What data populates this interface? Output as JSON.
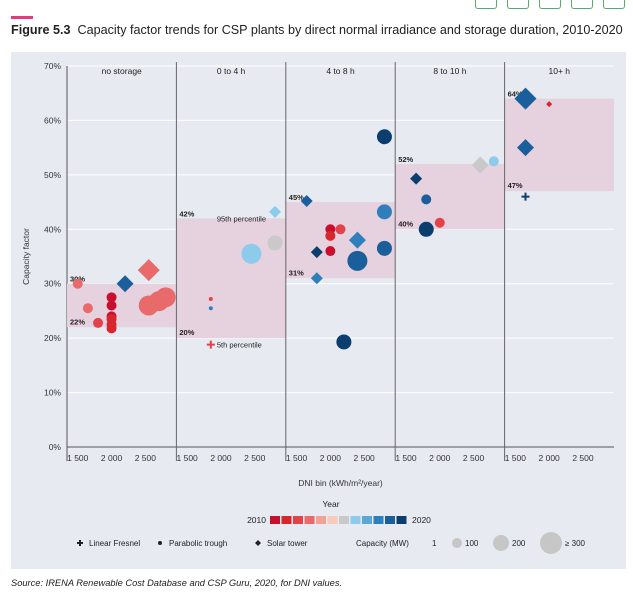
{
  "figure": {
    "label": "Figure 5.3",
    "title": "Capacity factor trends for CSP plants by direct normal irradiance and storage duration, 2010-2020",
    "source": "Source: IRENA Renewable Cost Database and CSP Guru, 2020, for DNI values."
  },
  "chart_data": {
    "type": "scatter",
    "title": "Capacity factor trends for CSP plants by direct normal irradiance and storage duration, 2010-2020",
    "xlabel": "DNI bin (kWh/m²/year)",
    "ylabel": "Capacity factor",
    "ylim": [
      0,
      0.7
    ],
    "y_ticks": [
      0,
      0.1,
      0.2,
      0.3,
      0.4,
      0.5,
      0.6,
      0.7
    ],
    "y_tick_labels": [
      "0%",
      "10%",
      "20%",
      "30%",
      "40%",
      "50%",
      "60%",
      "70%"
    ],
    "x_ticks": [
      1500,
      2000,
      2500
    ],
    "x_tick_labels": [
      "1 500",
      "2 000",
      "2 500"
    ],
    "xlim": [
      1400,
      2900
    ],
    "grid": true,
    "colors": {
      "band": "#e6d2de",
      "divider": "#666666",
      "year_2010": "#c8102e",
      "year_2020": "#0b3d6e"
    },
    "panels": [
      {
        "name": "no storage",
        "band": [
          0.22,
          0.3
        ],
        "band_labels": [
          "30%",
          "22%"
        ],
        "points": [
          {
            "x": 1500,
            "y": 0.3,
            "marker": "circle",
            "size": 1,
            "year": 2013
          },
          {
            "x": 1650,
            "y": 0.255,
            "marker": "circle",
            "size": 1,
            "year": 2013
          },
          {
            "x": 1800,
            "y": 0.228,
            "marker": "circle",
            "size": 1,
            "year": 2012
          },
          {
            "x": 2000,
            "y": 0.275,
            "marker": "circle",
            "size": 1,
            "year": 2010
          },
          {
            "x": 2000,
            "y": 0.26,
            "marker": "circle",
            "size": 1,
            "year": 2010
          },
          {
            "x": 2000,
            "y": 0.24,
            "marker": "circle",
            "size": 1,
            "year": 2010
          },
          {
            "x": 2000,
            "y": 0.235,
            "marker": "circle",
            "size": 1,
            "year": 2011
          },
          {
            "x": 2000,
            "y": 0.225,
            "marker": "circle",
            "size": 1,
            "year": 2011
          },
          {
            "x": 2000,
            "y": 0.218,
            "marker": "circle",
            "size": 1,
            "year": 2011
          },
          {
            "x": 2200,
            "y": 0.3,
            "marker": "diamond",
            "size": 2,
            "year": 2019
          },
          {
            "x": 2550,
            "y": 0.325,
            "marker": "diamond",
            "size": 3,
            "year": 2013
          },
          {
            "x": 2550,
            "y": 0.26,
            "marker": "circle",
            "size": 3,
            "year": 2013
          },
          {
            "x": 2700,
            "y": 0.268,
            "marker": "circle",
            "size": 3,
            "year": 2013
          },
          {
            "x": 2800,
            "y": 0.275,
            "marker": "circle",
            "size": 3,
            "year": 2013
          }
        ]
      },
      {
        "name": "0 to 4 h",
        "band": [
          0.2,
          0.42
        ],
        "band_labels": [
          "42%",
          "20%"
        ],
        "annotations": [
          {
            "text": "95th percentile",
            "x": 1850,
            "y": 0.42
          },
          {
            "text": "5th percentile",
            "x": 1850,
            "y": 0.188
          }
        ],
        "points": [
          {
            "x": 1850,
            "y": 0.188,
            "marker": "plus",
            "size": 1,
            "year": 2012
          },
          {
            "x": 1850,
            "y": 0.272,
            "marker": "circle",
            "size": 0,
            "year": 2012
          },
          {
            "x": 1850,
            "y": 0.255,
            "marker": "circle",
            "size": 0,
            "year": 2018
          },
          {
            "x": 2450,
            "y": 0.355,
            "marker": "circle",
            "size": 3,
            "year": 2016
          },
          {
            "x": 2800,
            "y": 0.375,
            "marker": "circle",
            "size": 2,
            "year": 2015
          },
          {
            "x": 2800,
            "y": 0.432,
            "marker": "diamond",
            "size": 1,
            "year": 2016
          }
        ]
      },
      {
        "name": "4 to 8 h",
        "band": [
          0.31,
          0.45
        ],
        "band_labels": [
          "45%",
          "31%"
        ],
        "points": [
          {
            "x": 1650,
            "y": 0.452,
            "marker": "diamond",
            "size": 1,
            "year": 2019
          },
          {
            "x": 1800,
            "y": 0.358,
            "marker": "diamond",
            "size": 1,
            "year": 2020
          },
          {
            "x": 1800,
            "y": 0.31,
            "marker": "diamond",
            "size": 1,
            "year": 2018
          },
          {
            "x": 2000,
            "y": 0.4,
            "marker": "circle",
            "size": 1,
            "year": 2010
          },
          {
            "x": 2000,
            "y": 0.388,
            "marker": "circle",
            "size": 1,
            "year": 2011
          },
          {
            "x": 2000,
            "y": 0.36,
            "marker": "circle",
            "size": 1,
            "year": 2010
          },
          {
            "x": 2150,
            "y": 0.4,
            "marker": "circle",
            "size": 1,
            "year": 2012
          },
          {
            "x": 2200,
            "y": 0.193,
            "marker": "circle",
            "size": 2,
            "year": 2020
          },
          {
            "x": 2400,
            "y": 0.38,
            "marker": "diamond",
            "size": 2,
            "year": 2018
          },
          {
            "x": 2400,
            "y": 0.342,
            "marker": "circle",
            "size": 3,
            "year": 2019
          },
          {
            "x": 2800,
            "y": 0.57,
            "marker": "circle",
            "size": 2,
            "year": 2020
          },
          {
            "x": 2800,
            "y": 0.432,
            "marker": "circle",
            "size": 2,
            "year": 2018
          },
          {
            "x": 2800,
            "y": 0.365,
            "marker": "circle",
            "size": 2,
            "year": 2019
          }
        ]
      },
      {
        "name": "8 to 10 h",
        "band": [
          0.4,
          0.52
        ],
        "band_labels": [
          "52%",
          "40%"
        ],
        "points": [
          {
            "x": 1650,
            "y": 0.493,
            "marker": "diamond",
            "size": 1,
            "year": 2020
          },
          {
            "x": 1800,
            "y": 0.455,
            "marker": "circle",
            "size": 1,
            "year": 2019
          },
          {
            "x": 1800,
            "y": 0.4,
            "marker": "circle",
            "size": 2,
            "year": 2020
          },
          {
            "x": 2000,
            "y": 0.412,
            "marker": "circle",
            "size": 1,
            "year": 2012
          },
          {
            "x": 2600,
            "y": 0.518,
            "marker": "diamond",
            "size": 2,
            "year": 2015
          },
          {
            "x": 2800,
            "y": 0.525,
            "marker": "circle",
            "size": 1,
            "year": 2016
          }
        ]
      },
      {
        "name": "10+ h",
        "band": [
          0.47,
          0.64
        ],
        "band_labels": [
          "64%",
          "47%"
        ],
        "points": [
          {
            "x": 1650,
            "y": 0.64,
            "marker": "diamond",
            "size": 3,
            "year": 2019
          },
          {
            "x": 1650,
            "y": 0.55,
            "marker": "diamond",
            "size": 2,
            "year": 2019
          },
          {
            "x": 1650,
            "y": 0.46,
            "marker": "plus",
            "size": 1,
            "year": 2020
          },
          {
            "x": 2000,
            "y": 0.63,
            "marker": "diamond",
            "size": 0,
            "year": 2011
          }
        ]
      }
    ]
  },
  "legend": {
    "year_title": "Year",
    "year_start": "2010",
    "year_end": "2020",
    "year_colors": [
      "#c8102e",
      "#d8262e",
      "#e2434b",
      "#e86a6a",
      "#f0a392",
      "#f7cbb8",
      "#c9c9c9",
      "#8ccbeb",
      "#58a9d8",
      "#2f7fbd",
      "#1a5f9c",
      "#0b3d6e"
    ],
    "types": [
      {
        "label": "Linear Fresnel",
        "icon": "plus-icon"
      },
      {
        "label": "Parabolic trough",
        "icon": "circle-icon"
      },
      {
        "label": "Solar tower",
        "icon": "diamond-icon"
      }
    ],
    "capacity_title": "Capacity (MW)",
    "capacity": [
      {
        "label": "1",
        "size": 0
      },
      {
        "label": "100",
        "size": 1
      },
      {
        "label": "200",
        "size": 2
      },
      {
        "label": "≥ 300",
        "size": 3
      }
    ]
  }
}
